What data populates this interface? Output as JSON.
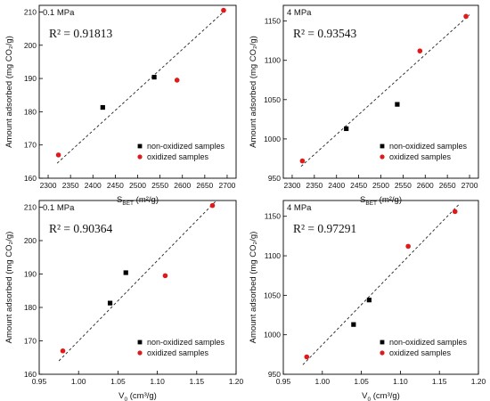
{
  "chart_data": [
    {
      "type": "scatter",
      "panel_label": "0.1 MPa",
      "r2_label": "R² = 0.91813",
      "xlabel": "S_BET (m²/g)",
      "ylabel": "Amount adsorbed (mg CO₂/g)",
      "xlim": [
        2280,
        2720
      ],
      "ylim": [
        160,
        212
      ],
      "xticks": [
        2300,
        2350,
        2400,
        2450,
        2500,
        2550,
        2600,
        2650,
        2700
      ],
      "yticks": [
        160,
        170,
        180,
        190,
        200,
        210
      ],
      "legend_position": "bottom-right",
      "series": [
        {
          "name": "non-oxidized samples",
          "color": "#000000",
          "marker": "square",
          "x": [
            2422,
            2537
          ],
          "y": [
            181.3,
            190.4
          ]
        },
        {
          "name": "oxidized samples",
          "color": "#e01a1a",
          "marker": "circle",
          "x": [
            2323,
            2588,
            2692
          ],
          "y": [
            167.0,
            189.5,
            210.5
          ]
        }
      ],
      "fit_line": {
        "x": [
          2320,
          2700
        ],
        "y": [
          164.5,
          211.0
        ]
      }
    },
    {
      "type": "scatter",
      "panel_label": "4 MPa",
      "r2_label": "R² = 0.93543",
      "xlabel": "S_BET (m²/g)",
      "ylabel": "Amount adsorbed (mg CO₂/g)",
      "xlim": [
        2280,
        2720
      ],
      "ylim": [
        950,
        1170
      ],
      "xticks": [
        2300,
        2350,
        2400,
        2450,
        2500,
        2550,
        2600,
        2650,
        2700
      ],
      "yticks": [
        950,
        1000,
        1050,
        1100,
        1150
      ],
      "legend_position": "bottom-right",
      "series": [
        {
          "name": "non-oxidized samples",
          "color": "#000000",
          "marker": "square",
          "x": [
            2422,
            2537
          ],
          "y": [
            1013,
            1044
          ]
        },
        {
          "name": "oxidized samples",
          "color": "#e01a1a",
          "marker": "circle",
          "x": [
            2323,
            2588,
            2692
          ],
          "y": [
            972,
            1112,
            1156
          ]
        }
      ],
      "fit_line": {
        "x": [
          2320,
          2700
        ],
        "y": [
          965,
          1158
        ]
      }
    },
    {
      "type": "scatter",
      "panel_label": "0.1 MPa",
      "r2_label": "R² = 0.90364",
      "xlabel": "V₀ (cm³/g)",
      "ylabel": "Amount adsorbed (mg CO₂/g)",
      "xlim": [
        0.95,
        1.2
      ],
      "ylim": [
        160,
        212
      ],
      "xticks": [
        0.95,
        1.0,
        1.05,
        1.1,
        1.15,
        1.2
      ],
      "yticks": [
        160,
        170,
        180,
        190,
        200,
        210
      ],
      "legend_position": "bottom-right",
      "series": [
        {
          "name": "non-oxidized samples",
          "color": "#000000",
          "marker": "square",
          "x": [
            1.04,
            1.06
          ],
          "y": [
            181.3,
            190.4
          ]
        },
        {
          "name": "oxidized samples",
          "color": "#e01a1a",
          "marker": "circle",
          "x": [
            0.98,
            1.11,
            1.17
          ],
          "y": [
            167.0,
            189.5,
            210.5
          ]
        }
      ],
      "fit_line": {
        "x": [
          0.975,
          1.175
        ],
        "y": [
          164.0,
          212.0
        ]
      }
    },
    {
      "type": "scatter",
      "panel_label": "4 MPa",
      "r2_label": "R² = 0.97291",
      "xlabel": "V₀ (cm³/g)",
      "ylabel": "Amount adsorbed (mg CO₂/g)",
      "xlim": [
        0.95,
        1.2
      ],
      "ylim": [
        950,
        1170
      ],
      "xticks": [
        0.95,
        1.0,
        1.05,
        1.1,
        1.15,
        1.2
      ],
      "yticks": [
        950,
        1000,
        1050,
        1100,
        1150
      ],
      "legend_position": "bottom-right",
      "series": [
        {
          "name": "non-oxidized samples",
          "color": "#000000",
          "marker": "square",
          "x": [
            1.04,
            1.06
          ],
          "y": [
            1013,
            1044
          ]
        },
        {
          "name": "oxidized samples",
          "color": "#e01a1a",
          "marker": "circle",
          "x": [
            0.98,
            1.11,
            1.17
          ],
          "y": [
            972,
            1112,
            1156
          ]
        }
      ],
      "fit_line": {
        "x": [
          0.975,
          1.175
        ],
        "y": [
          962,
          1165
        ]
      }
    }
  ]
}
